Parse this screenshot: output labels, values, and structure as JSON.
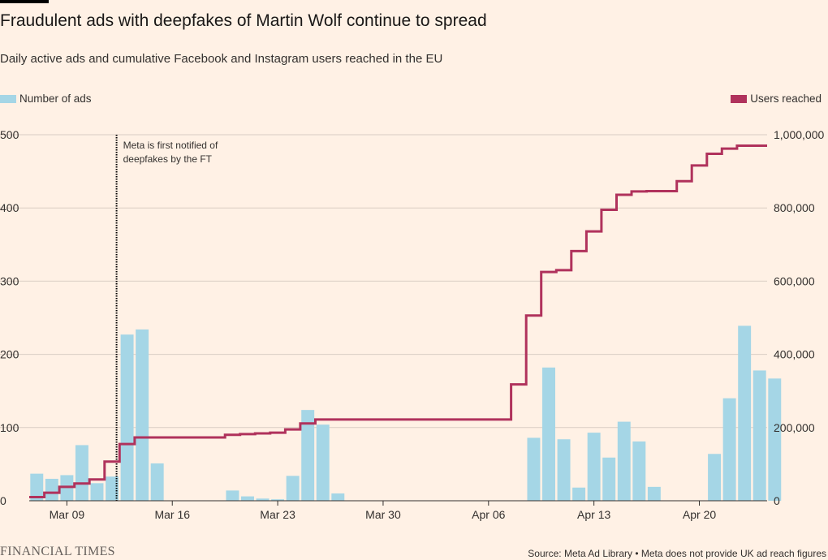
{
  "header": {
    "title": "Fraudulent ads with deepfakes of Martin Wolf continue to spread",
    "subtitle": "Daily active ads and cumulative Facebook and Instagram users reached in the EU"
  },
  "legend": {
    "ads_label": "Number of ads",
    "users_label": "Users reached"
  },
  "footer": {
    "logo": "FINANCIAL TIMES",
    "source": "Source: Meta Ad Library • Meta does not provide UK ad reach figures"
  },
  "colors": {
    "ads": "#a5d6e6",
    "users": "#b0325c",
    "grid": "#d9cdc3",
    "background": "#fff1e5"
  },
  "chart_data": {
    "type": "bar+line",
    "x_axis": {
      "ticks": [
        {
          "day": 9,
          "label": "Mar 09"
        },
        {
          "day": 16,
          "label": "Mar 16"
        },
        {
          "day": 23,
          "label": "Mar 23"
        },
        {
          "day": 30,
          "label": "Mar 30"
        },
        {
          "day": 37,
          "label": "Apr 06"
        },
        {
          "day": 44,
          "label": "Apr 13"
        },
        {
          "day": 51,
          "label": "Apr 20"
        }
      ],
      "range": [
        6.5,
        55.5
      ]
    },
    "y_left": {
      "range": [
        0,
        500
      ],
      "ticks": [
        0,
        100,
        200,
        300,
        400,
        500
      ],
      "labels": [
        "0",
        "100",
        "200",
        "300",
        "400",
        "500"
      ]
    },
    "y_right": {
      "range": [
        0,
        1000000
      ],
      "ticks": [
        0,
        200000,
        400000,
        600000,
        800000,
        1000000
      ],
      "labels": [
        "0",
        "200,000",
        "400,000",
        "600,000",
        "800,000",
        "1,000,000"
      ]
    },
    "annotation": {
      "day": 12.3,
      "lines": [
        "Meta is first notified of",
        "deepfakes by the FT"
      ]
    },
    "ads": [
      {
        "day": 7,
        "value": 37
      },
      {
        "day": 8,
        "value": 30
      },
      {
        "day": 9,
        "value": 35
      },
      {
        "day": 10,
        "value": 76
      },
      {
        "day": 11,
        "value": 24
      },
      {
        "day": 12,
        "value": 33
      },
      {
        "day": 13,
        "value": 227
      },
      {
        "day": 14,
        "value": 234
      },
      {
        "day": 15,
        "value": 51
      },
      {
        "day": 20,
        "value": 14
      },
      {
        "day": 21,
        "value": 6
      },
      {
        "day": 22,
        "value": 3
      },
      {
        "day": 23,
        "value": 2
      },
      {
        "day": 24,
        "value": 34
      },
      {
        "day": 25,
        "value": 124
      },
      {
        "day": 26,
        "value": 104
      },
      {
        "day": 27,
        "value": 10
      },
      {
        "day": 40,
        "value": 86
      },
      {
        "day": 41,
        "value": 182
      },
      {
        "day": 42,
        "value": 84
      },
      {
        "day": 43,
        "value": 18
      },
      {
        "day": 44,
        "value": 93
      },
      {
        "day": 45,
        "value": 59
      },
      {
        "day": 46,
        "value": 108
      },
      {
        "day": 47,
        "value": 81
      },
      {
        "day": 48,
        "value": 19
      },
      {
        "day": 52,
        "value": 64
      },
      {
        "day": 53,
        "value": 140
      },
      {
        "day": 54,
        "value": 239
      },
      {
        "day": 55,
        "value": 178
      },
      {
        "day": 56,
        "value": 167
      }
    ],
    "users": [
      {
        "start": 7,
        "end": 8,
        "value": 10000
      },
      {
        "start": 8,
        "end": 9,
        "value": 22000
      },
      {
        "start": 9,
        "end": 10,
        "value": 38000
      },
      {
        "start": 10,
        "end": 11,
        "value": 47000
      },
      {
        "start": 11,
        "end": 12,
        "value": 58000
      },
      {
        "start": 12,
        "end": 13,
        "value": 107000
      },
      {
        "start": 13,
        "end": 14,
        "value": 155000
      },
      {
        "start": 14,
        "end": 20,
        "value": 173000
      },
      {
        "start": 20,
        "end": 21,
        "value": 180000
      },
      {
        "start": 21,
        "end": 22,
        "value": 182000
      },
      {
        "start": 22,
        "end": 23,
        "value": 184000
      },
      {
        "start": 23,
        "end": 24,
        "value": 186000
      },
      {
        "start": 24,
        "end": 25,
        "value": 195000
      },
      {
        "start": 25,
        "end": 26,
        "value": 211000
      },
      {
        "start": 26,
        "end": 39,
        "value": 222000
      },
      {
        "start": 39,
        "end": 40,
        "value": 318000
      },
      {
        "start": 40,
        "end": 41,
        "value": 506000
      },
      {
        "start": 41,
        "end": 42,
        "value": 625000
      },
      {
        "start": 42,
        "end": 43,
        "value": 630000
      },
      {
        "start": 43,
        "end": 44,
        "value": 682000
      },
      {
        "start": 44,
        "end": 45,
        "value": 736000
      },
      {
        "start": 45,
        "end": 46,
        "value": 795000
      },
      {
        "start": 46,
        "end": 47,
        "value": 836000
      },
      {
        "start": 47,
        "end": 48,
        "value": 845000
      },
      {
        "start": 48,
        "end": 50,
        "value": 846000
      },
      {
        "start": 50,
        "end": 51,
        "value": 873000
      },
      {
        "start": 51,
        "end": 52,
        "value": 916000
      },
      {
        "start": 52,
        "end": 53,
        "value": 948000
      },
      {
        "start": 53,
        "end": 54,
        "value": 962000
      },
      {
        "start": 54,
        "end": 55,
        "value": 970000
      },
      {
        "start": 55,
        "end": 56,
        "value": 970000
      }
    ]
  }
}
